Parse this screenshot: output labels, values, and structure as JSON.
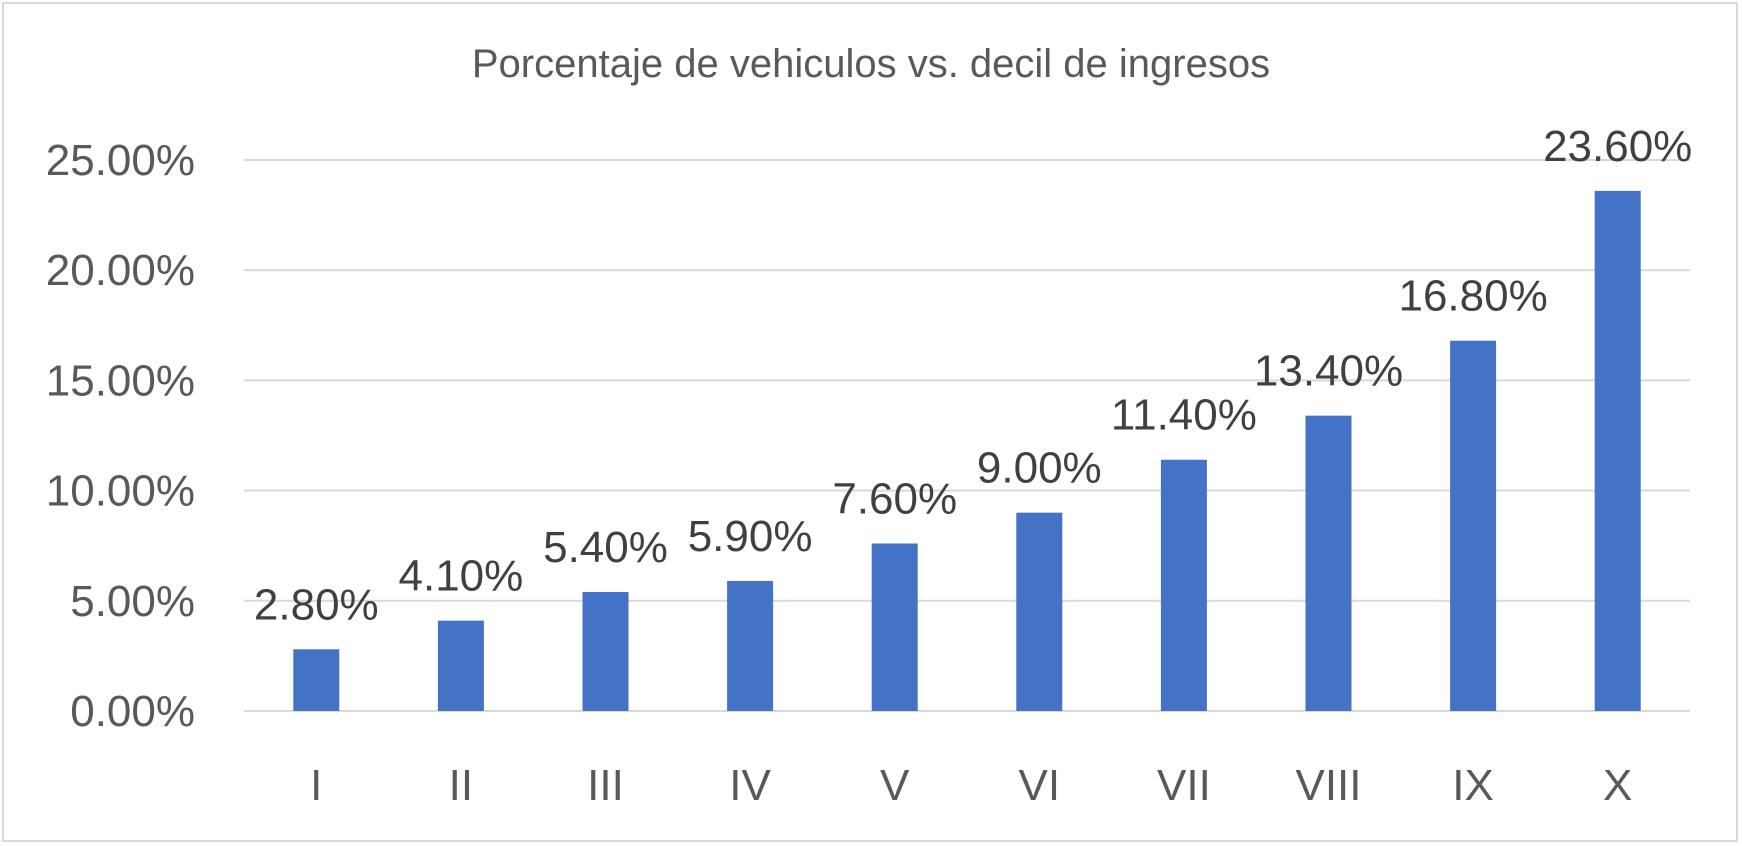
{
  "chart_data": {
    "type": "bar",
    "title": "Porcentaje de vehiculos vs. decil de ingresos",
    "xlabel": "",
    "ylabel": "",
    "categories": [
      "I",
      "II",
      "III",
      "IV",
      "V",
      "VI",
      "VII",
      "VIII",
      "IX",
      "X"
    ],
    "values": [
      2.8,
      4.1,
      5.4,
      5.9,
      7.6,
      9.0,
      11.4,
      13.4,
      16.8,
      23.6
    ],
    "data_labels": [
      "2.80%",
      "4.10%",
      "5.40%",
      "5.90%",
      "7.60%",
      "9.00%",
      "11.40%",
      "13.40%",
      "16.80%",
      "23.60%"
    ],
    "ylim": [
      0,
      25
    ],
    "yticks": [
      0,
      5,
      10,
      15,
      20,
      25
    ],
    "ytick_labels": [
      "0.00%",
      "5.00%",
      "10.00%",
      "15.00%",
      "20.00%",
      "25.00%"
    ],
    "grid": true,
    "legend": "none",
    "bar_color": "#4472c4"
  }
}
